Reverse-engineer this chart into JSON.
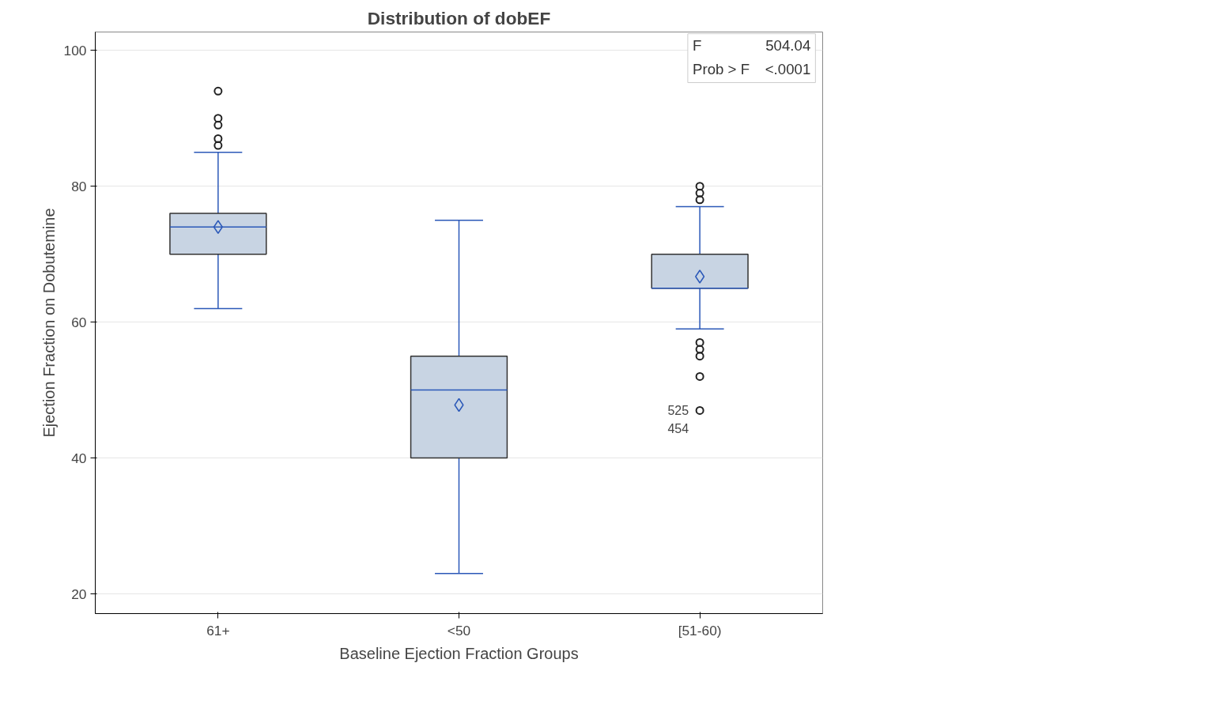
{
  "chart_data": {
    "type": "box",
    "title": "Distribution of dobEF",
    "xlabel": "Baseline Ejection Fraction Groups",
    "ylabel": "Ejection Fraction on Dobutemine",
    "categories": [
      "61+",
      "<50",
      "[51-60)"
    ],
    "color": "#c8d4e3",
    "boxes": [
      {
        "low": 62,
        "q1": 70,
        "median": 74,
        "q3": 76,
        "high": 85,
        "mean": 74,
        "outliers": [
          86,
          87,
          89,
          90,
          94
        ]
      },
      {
        "low": 23,
        "q1": 40,
        "median": 50,
        "q3": 55,
        "high": 75,
        "mean": 47.8
      },
      {
        "low": 59,
        "q1": 65,
        "median": 65,
        "q3": 70,
        "high": 77,
        "mean": 66.7,
        "outliers": [
          78,
          79,
          80,
          57,
          56,
          55,
          52,
          47
        ]
      }
    ],
    "ylim": [
      17.1,
      102.7
    ],
    "yticks": [
      20,
      40,
      60,
      80,
      100
    ],
    "grid": "y",
    "marker": "diamond",
    "annotations": [
      "525",
      "454",
      "F",
      "504.04",
      "Prob > F",
      "<.0001"
    ]
  }
}
